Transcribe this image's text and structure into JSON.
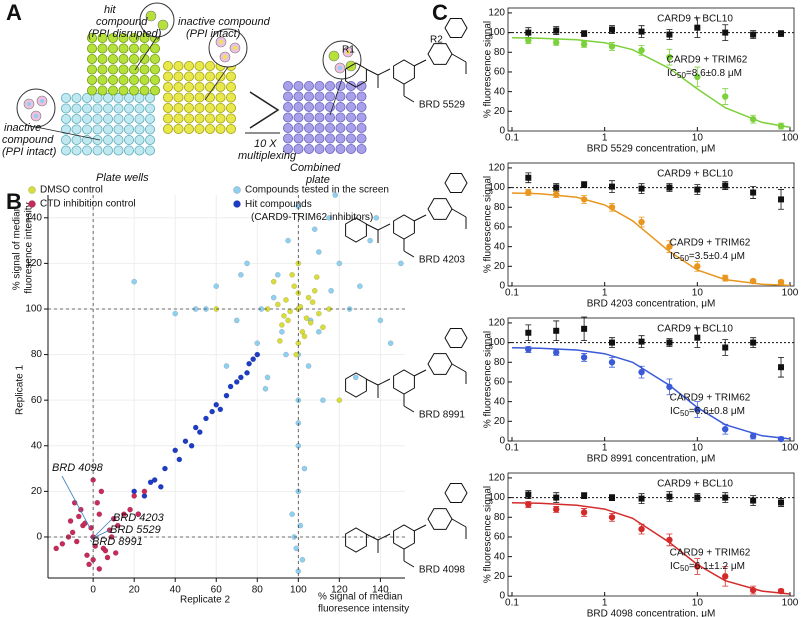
{
  "panels": [
    "A",
    "B",
    "C"
  ],
  "diagram": {
    "labels": [
      "hit",
      "compound",
      "(PPI disrupted)",
      "inactive compound",
      "(PPI intact)",
      "inactive",
      "compound",
      "(PPI intact)",
      "Plate wells",
      "10 X",
      "multiplexing",
      "Combined",
      "plate"
    ]
  },
  "structure_labels": [
    "R1",
    "R2"
  ],
  "chart_data": [
    {
      "type": "scatter",
      "xlabel": "Replicate 2",
      "ylabel": "Replicate 1",
      "x_sublabel": [
        "% signal of median",
        "fluoresence intensity"
      ],
      "y_sublabel": [
        "% signal of median",
        "fluoresence intensity"
      ],
      "xlim": [
        -22,
        152
      ],
      "ylim": [
        -18,
        150
      ],
      "xticks": [
        0,
        20,
        40,
        60,
        80,
        100,
        120,
        140
      ],
      "yticks": [
        0,
        20,
        40,
        60,
        80,
        100,
        120,
        140
      ],
      "grid": true,
      "reference_lines": [
        0,
        100
      ],
      "annotations": [
        "BRD 4098",
        "BRD 4203",
        "BRD 5529",
        "BRD 8991"
      ],
      "series": [
        {
          "name": "Compounds tested in the screen",
          "color": "#8fd0f0",
          "x": [
            100,
            90,
            110,
            120,
            80,
            95,
            105,
            130,
            70,
            115,
            125,
            85,
            100,
            140,
            60,
            100,
            100,
            100,
            98,
            102,
            75,
            135,
            145,
            88,
            112,
            50,
            65,
            118,
            92,
            108,
            100,
            100,
            97,
            103,
            40,
            20,
            128,
            138,
            82,
            72,
            110,
            94,
            106,
            55,
            150,
            100,
            99,
            101,
            84,
            116
          ],
          "values": [
            100,
            115,
            90,
            120,
            85,
            130,
            75,
            110,
            95,
            140,
            100,
            70,
            145,
            95,
            110,
            60,
            40,
            20,
            0,
            -10,
            120,
            130,
            85,
            105,
            60,
            100,
            75,
            150,
            90,
            135,
            -15,
            80,
            10,
            30,
            98,
            112,
            70,
            140,
            100,
            115,
            125,
            80,
            95,
            100,
            120,
            50,
            -5,
            5,
            65,
            108
          ]
        },
        {
          "name": "DMSO control",
          "color": "#d8dd3c",
          "x": [
            100,
            95,
            105,
            90,
            110,
            98,
            102,
            93,
            107,
            100,
            85,
            115,
            97,
            103,
            100,
            92,
            108,
            96,
            104,
            88,
            112,
            100,
            99,
            101,
            94,
            106,
            91,
            109,
            60,
            120
          ],
          "values": [
            100,
            95,
            105,
            102,
            98,
            110,
            90,
            97,
            103,
            85,
            100,
            100,
            115,
            88,
            107,
            93,
            108,
            99,
            96,
            112,
            92,
            120,
            80,
            101,
            104,
            94,
            86,
            114,
            100,
            60
          ]
        },
        {
          "name": "Hit compounds (CARD9-TRIM62 inhibitors)",
          "color": "#1c3cc8",
          "x": [
            20,
            25,
            30,
            35,
            40,
            42,
            45,
            48,
            50,
            52,
            55,
            58,
            60,
            62,
            65,
            67,
            70,
            72,
            75,
            76,
            78,
            80,
            22,
            33,
            28
          ],
          "values": [
            20,
            18,
            25,
            30,
            38,
            34,
            42,
            40,
            48,
            46,
            52,
            55,
            58,
            56,
            62,
            66,
            68,
            70,
            72,
            76,
            78,
            80,
            10,
            22,
            24
          ]
        },
        {
          "name": "CTD inhibition control",
          "color": "#c82a5a",
          "x": [
            0,
            -5,
            5,
            -10,
            10,
            -3,
            3,
            -8,
            8,
            0,
            -12,
            12,
            -6,
            6,
            2,
            -2,
            -15,
            15,
            4,
            -4,
            1,
            -1,
            7,
            -7,
            0,
            20,
            18,
            -18,
            9,
            -9,
            3,
            -11,
            11,
            25,
            22
          ],
          "values": [
            0,
            5,
            -5,
            2,
            8,
            -8,
            10,
            -2,
            3,
            -10,
            0,
            5,
            12,
            -6,
            15,
            -12,
            -3,
            10,
            20,
            6,
            -4,
            4,
            -9,
            9,
            25,
            18,
            12,
            -5,
            0,
            15,
            -14,
            7,
            -7,
            20,
            10
          ]
        }
      ]
    },
    {
      "type": "dose_response",
      "compound": "BRD 5529",
      "xlabel": "BRD 5529 concentration, μM",
      "ylabel": "% fluorescence signal",
      "xscale": "log",
      "xlim": [
        0.1,
        100
      ],
      "ylim": [
        0,
        125
      ],
      "xticks": [
        0.1,
        1,
        10,
        100
      ],
      "yticks": [
        0,
        20,
        40,
        60,
        80,
        100,
        120
      ],
      "reference_line": 100,
      "x": [
        0.15,
        0.3,
        0.6,
        1.2,
        2.5,
        5,
        10,
        20,
        40,
        80
      ],
      "series": [
        {
          "name": "CARD9 + BCL10",
          "color": "#111111",
          "marker": "square",
          "values": [
            100,
            102,
            99,
            103,
            101,
            98,
            105,
            100,
            98,
            99
          ],
          "errors": [
            5,
            4,
            3,
            4,
            6,
            5,
            10,
            8,
            4,
            3
          ]
        },
        {
          "name": "CARD9 + TRIM62",
          "color": "#7cd13a",
          "marker": "circle",
          "values": [
            92,
            90,
            88,
            86,
            82,
            75,
            55,
            35,
            12,
            5
          ],
          "errors": [
            3,
            3,
            3,
            4,
            5,
            8,
            10,
            8,
            4,
            3
          ]
        }
      ],
      "curve": {
        "x": [
          0.1,
          0.2,
          0.5,
          1,
          2,
          5,
          10,
          20,
          50,
          100
        ],
        "values": [
          94.7,
          94.3,
          92.7,
          89.6,
          82.6,
          63.6,
          42.8,
          23.7,
          8.7,
          3.8
        ]
      },
      "ic50": [
        "IC",
        "50",
        "=8.6±0.8 μM"
      ]
    },
    {
      "type": "dose_response",
      "compound": "BRD 4203",
      "xlabel": "BRD 4203 concentration, μM",
      "ylabel": "% fluorescence signal",
      "xscale": "log",
      "xlim": [
        0.1,
        100
      ],
      "ylim": [
        0,
        125
      ],
      "xticks": [
        0.1,
        1,
        10,
        100
      ],
      "yticks": [
        0,
        20,
        40,
        60,
        80,
        100,
        120
      ],
      "reference_line": 100,
      "x": [
        0.15,
        0.3,
        0.6,
        1.2,
        2.5,
        5,
        10,
        20,
        40,
        80
      ],
      "series": [
        {
          "name": "CARD9 + BCL10",
          "color": "#111111",
          "marker": "square",
          "values": [
            110,
            100,
            103,
            101,
            99,
            100,
            98,
            102,
            95,
            88
          ],
          "errors": [
            5,
            4,
            3,
            6,
            5,
            4,
            5,
            4,
            6,
            10
          ]
        },
        {
          "name": "CARD9 + TRIM62",
          "color": "#e8961e",
          "marker": "circle",
          "values": [
            95,
            93,
            88,
            80,
            65,
            40,
            20,
            8,
            5,
            4
          ],
          "errors": [
            3,
            3,
            4,
            4,
            5,
            6,
            5,
            3,
            2,
            2
          ]
        }
      ],
      "curve": {
        "x": [
          0.1,
          0.2,
          0.5,
          1,
          2,
          5,
          10,
          20,
          50,
          100
        ],
        "values": [
          94.5,
          93.7,
          90.1,
          82.4,
          66.3,
          35.1,
          16.3,
          6.5,
          1.7,
          0.6
        ]
      },
      "ic50": [
        "IC",
        "50",
        "=3.5±0.4 μM"
      ]
    },
    {
      "type": "dose_response",
      "compound": "BRD 8991",
      "xlabel": "BRD 8991 concentration, μM",
      "ylabel": "% fluorescence signal",
      "xscale": "log",
      "xlim": [
        0.1,
        100
      ],
      "ylim": [
        0,
        125
      ],
      "xticks": [
        0.1,
        1,
        10,
        100
      ],
      "yticks": [
        0,
        20,
        40,
        60,
        80,
        100,
        120
      ],
      "reference_line": 100,
      "x": [
        0.15,
        0.3,
        0.6,
        1.2,
        2.5,
        5,
        10,
        20,
        40,
        80
      ],
      "series": [
        {
          "name": "CARD9 + BCL10",
          "color": "#111111",
          "marker": "square",
          "values": [
            110,
            112,
            114,
            100,
            101,
            100,
            105,
            95,
            100,
            75
          ],
          "errors": [
            8,
            10,
            12,
            5,
            6,
            4,
            10,
            8,
            5,
            10
          ]
        },
        {
          "name": "CARD9 + TRIM62",
          "color": "#3a5ad8",
          "marker": "circle",
          "values": [
            93,
            90,
            85,
            80,
            70,
            55,
            32,
            12,
            5,
            2
          ],
          "errors": [
            3,
            3,
            4,
            5,
            6,
            8,
            8,
            5,
            3,
            2
          ]
        }
      ],
      "curve": {
        "x": [
          0.1,
          0.2,
          0.5,
          1,
          2,
          5,
          10,
          20,
          50,
          100
        ],
        "values": [
          94.7,
          94.3,
          92.5,
          88.7,
          80,
          56.6,
          34,
          16.6,
          5.3,
          2.1
        ]
      },
      "ic50": [
        "IC",
        "50",
        "=6.6±0.8 μM"
      ]
    },
    {
      "type": "dose_response",
      "compound": "BRD 4098",
      "xlabel": "BRD 4098 concentration, μM",
      "ylabel": "% fluorescence signal",
      "xscale": "log",
      "xlim": [
        0.1,
        100
      ],
      "ylim": [
        0,
        125
      ],
      "xticks": [
        0.1,
        1,
        10,
        100
      ],
      "yticks": [
        0,
        20,
        40,
        60,
        80,
        100,
        120
      ],
      "reference_line": 100,
      "x": [
        0.15,
        0.3,
        0.6,
        1.2,
        2.5,
        5,
        10,
        20,
        40,
        80
      ],
      "series": [
        {
          "name": "CARD9 + BCL10",
          "color": "#111111",
          "marker": "square",
          "values": [
            103,
            100,
            102,
            100,
            99,
            101,
            100,
            100,
            97,
            95
          ],
          "errors": [
            4,
            5,
            3,
            3,
            5,
            5,
            4,
            5,
            5,
            4
          ]
        },
        {
          "name": "CARD9 + TRIM62",
          "color": "#d42a2a",
          "marker": "circle",
          "values": [
            93,
            88,
            85,
            80,
            68,
            57,
            30,
            20,
            6,
            5
          ],
          "errors": [
            3,
            3,
            4,
            4,
            5,
            6,
            8,
            10,
            4,
            2
          ]
        }
      ],
      "curve": {
        "x": [
          0.1,
          0.2,
          0.5,
          1,
          2,
          5,
          10,
          20,
          50,
          100
        ],
        "values": [
          94.7,
          94.2,
          92.3,
          88.3,
          79,
          54.5,
          32,
          15.5,
          5,
          2
        ]
      },
      "ic50": [
        "IC",
        "50",
        "=6.1±1.2 μM"
      ]
    }
  ]
}
